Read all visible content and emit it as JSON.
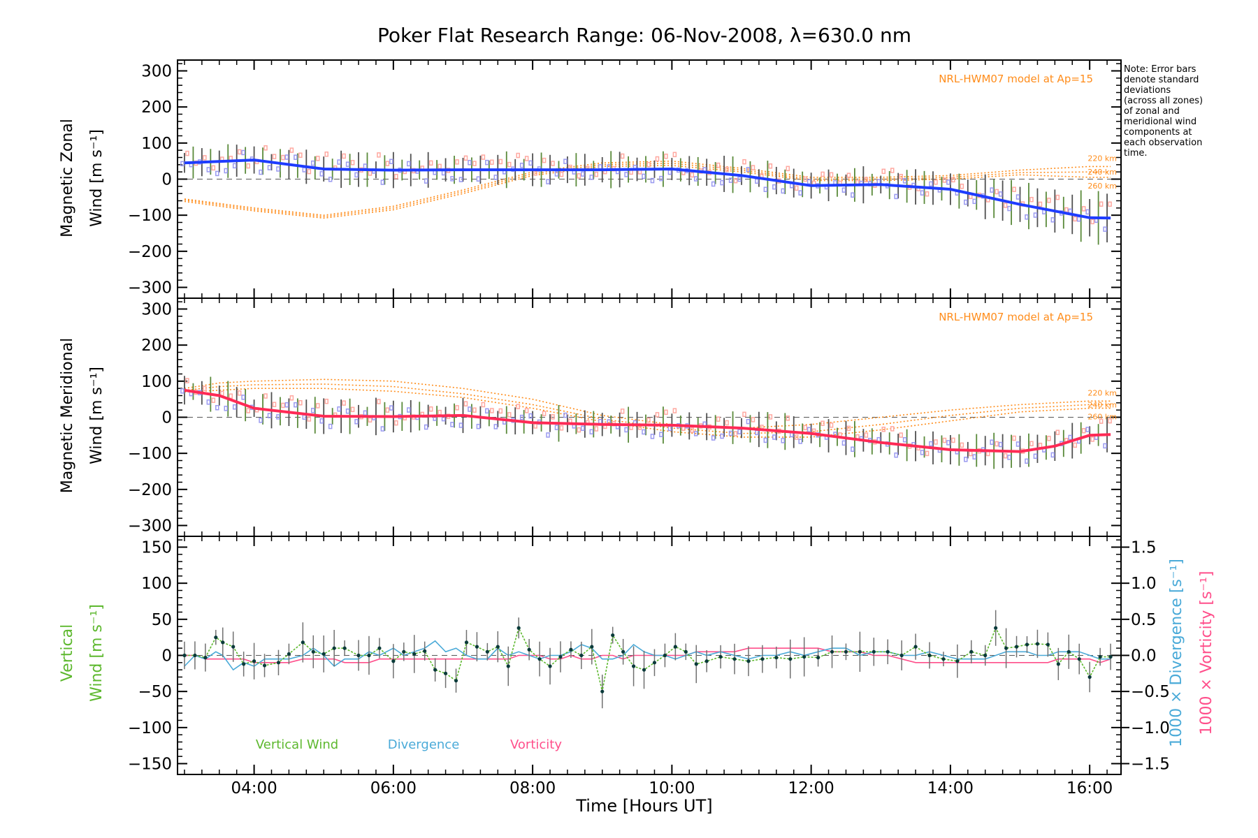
{
  "title": "Poker Flat Research Range: 06-Nov-2008, λ=630.0 nm",
  "note_lines": [
    "Note: Error bars",
    "denote standard",
    "deviations",
    "(across all zones)",
    "of zonal and",
    "meridional wind",
    "components at",
    "each observation",
    "time."
  ],
  "xlabel": "Time [Hours UT]",
  "x_ticks": [
    "04:00",
    "06:00",
    "08:00",
    "10:00",
    "12:00",
    "14:00",
    "16:00"
  ],
  "colors": {
    "zonal_line": "#1e3cff",
    "merid_line": "#ff2a55",
    "model": "#ff8c1a",
    "vertical": "#5db82e",
    "divergence": "#4aaad8",
    "vorticity": "#ff4f8b",
    "zone_blue": "#9a9af0",
    "zone_pink": "#ffa8a0",
    "errbar": "#505050"
  },
  "chart_data": [
    {
      "type": "line",
      "panel": "zonal",
      "ylabel": "Magnetic Zonal",
      "ylabel2": "Wind [m s⁻¹]",
      "ylim": [
        -330,
        330
      ],
      "yticks": [
        "300",
        "200",
        "100",
        "0",
        "−100",
        "−200",
        "−300"
      ],
      "model_label": "NRL-HWM07 model at Ap=15",
      "model_heights": [
        "220 km",
        "240 km",
        "260 km"
      ],
      "x_hours": [
        3.0,
        4.0,
        5.0,
        6.0,
        7.0,
        8.0,
        9.0,
        10.0,
        11.0,
        12.0,
        13.0,
        14.0,
        15.0,
        16.0,
        16.3
      ],
      "wind": [
        45,
        53,
        28,
        25,
        26,
        26,
        26,
        28,
        10,
        -18,
        -15,
        -28,
        -70,
        -107,
        -108
      ],
      "model": [
        {
          "name": "220 km",
          "values": [
            -55,
            -80,
            -100,
            -75,
            -30,
            20,
            45,
            50,
            30,
            5,
            5,
            10,
            25,
            35,
            35
          ]
        },
        {
          "name": "240 km",
          "values": [
            -58,
            -84,
            -104,
            -80,
            -35,
            15,
            40,
            44,
            25,
            0,
            0,
            5,
            18,
            20,
            20
          ]
        },
        {
          "name": "260 km",
          "values": [
            -62,
            -88,
            -108,
            -85,
            -40,
            10,
            35,
            38,
            20,
            -4,
            -4,
            0,
            12,
            5,
            5
          ]
        }
      ]
    },
    {
      "type": "line",
      "panel": "meridional",
      "ylabel": "Magnetic Meridional",
      "ylabel2": "Wind [m s⁻¹]",
      "ylim": [
        -330,
        330
      ],
      "yticks": [
        "300",
        "200",
        "100",
        "0",
        "−100",
        "−200",
        "−300"
      ],
      "model_label": "NRL-HWM07 model at Ap=15",
      "model_heights": [
        "220 km",
        "240 km",
        "260 km"
      ],
      "x_hours": [
        3.0,
        3.5,
        4.0,
        5.0,
        6.0,
        7.0,
        8.0,
        9.0,
        10.0,
        11.0,
        12.0,
        13.0,
        14.0,
        15.0,
        15.5,
        16.0,
        16.3
      ],
      "wind": [
        75,
        60,
        25,
        3,
        2,
        5,
        -15,
        -20,
        -22,
        -30,
        -45,
        -70,
        -90,
        -95,
        -80,
        -50,
        -48
      ],
      "model": [
        {
          "name": "220 km",
          "values": [
            80,
            95,
            100,
            105,
            100,
            80,
            50,
            5,
            -20,
            -30,
            -20,
            0,
            20,
            35,
            40,
            45,
            45
          ]
        },
        {
          "name": "240 km",
          "values": [
            75,
            85,
            90,
            92,
            85,
            65,
            35,
            -5,
            -30,
            -45,
            -40,
            -20,
            5,
            25,
            30,
            35,
            35
          ]
        },
        {
          "name": "260 km",
          "values": [
            70,
            75,
            80,
            80,
            72,
            55,
            25,
            -12,
            -40,
            -55,
            -55,
            -35,
            -10,
            15,
            20,
            25,
            25
          ]
        }
      ]
    },
    {
      "type": "line",
      "panel": "vertical",
      "ylabel": "Vertical",
      "ylabel2": "Wind [m s⁻¹]",
      "ylim": [
        -165,
        165
      ],
      "yticks": [
        "150",
        "100",
        "50",
        "0",
        "−50",
        "−100",
        "−150"
      ],
      "y2lim": [
        -1.65,
        1.65
      ],
      "y2ticks": [
        "1.5",
        "1.0",
        "0.5",
        "0.0",
        "−0.5",
        "−1.0",
        "−1.5"
      ],
      "y2label_div": "1000 × Divergence [s⁻¹]",
      "y2label_vort": "1000 × Vorticity [s⁻¹]",
      "legend": [
        "Vertical Wind",
        "Divergence",
        "Vorticity"
      ],
      "x_hours": [
        3.0,
        3.15,
        3.3,
        3.45,
        3.55,
        3.7,
        3.85,
        4.0,
        4.15,
        4.35,
        4.5,
        4.7,
        4.85,
        5.0,
        5.15,
        5.3,
        5.5,
        5.65,
        5.8,
        6.0,
        6.15,
        6.3,
        6.45,
        6.6,
        6.75,
        6.9,
        7.05,
        7.2,
        7.35,
        7.5,
        7.65,
        7.8,
        7.95,
        8.1,
        8.25,
        8.4,
        8.55,
        8.7,
        8.85,
        9.0,
        9.15,
        9.3,
        9.45,
        9.6,
        9.75,
        9.9,
        10.05,
        10.2,
        10.35,
        10.5,
        10.7,
        10.9,
        11.1,
        11.3,
        11.5,
        11.7,
        11.9,
        12.1,
        12.3,
        12.5,
        12.7,
        12.9,
        13.1,
        13.3,
        13.5,
        13.7,
        13.9,
        14.1,
        14.3,
        14.5,
        14.65,
        14.8,
        14.95,
        15.1,
        15.25,
        15.4,
        15.55,
        15.7,
        15.85,
        16.0,
        16.15,
        16.3
      ],
      "vertical_wind": [
        0,
        0,
        -3,
        25,
        18,
        12,
        -12,
        -8,
        -14,
        -10,
        2,
        18,
        5,
        2,
        10,
        10,
        0,
        0,
        10,
        -8,
        5,
        2,
        6,
        -20,
        -25,
        -35,
        18,
        12,
        5,
        12,
        -15,
        38,
        8,
        -5,
        -15,
        -2,
        8,
        0,
        12,
        -50,
        28,
        5,
        -15,
        -20,
        -10,
        0,
        12,
        5,
        -12,
        -8,
        -2,
        -5,
        -8,
        -5,
        -3,
        -5,
        -2,
        -3,
        5,
        5,
        5,
        5,
        5,
        0,
        12,
        0,
        -5,
        -8,
        5,
        0,
        38,
        10,
        12,
        15,
        16,
        15,
        -12,
        5,
        -5,
        -30,
        -2,
        -2
      ],
      "divergence": [
        -0.15,
        0.0,
        -0.05,
        0.05,
        0.0,
        -0.2,
        -0.1,
        -0.15,
        -0.05,
        -0.05,
        -0.05,
        0.0,
        0.1,
        0.0,
        -0.15,
        -0.05,
        -0.05,
        0.05,
        0.0,
        0.1,
        0.0,
        0.05,
        0.1,
        0.2,
        0.05,
        0.1,
        0.0,
        -0.05,
        -0.05,
        0.1,
        0.0,
        0.05,
        0.0,
        -0.05,
        0.0,
        0.0,
        0.05,
        0.15,
        0.1,
        -0.05,
        -0.05,
        0.0,
        0.15,
        0.05,
        0.0,
        0.0,
        -0.05,
        0.0,
        0.05,
        0.0,
        0.05,
        0.0,
        -0.05,
        0.0,
        0.0,
        0.05,
        0.0,
        0.05,
        0.1,
        0.1,
        0.0,
        0.05,
        0.05,
        0.0,
        0.0,
        0.05,
        0.0,
        -0.05,
        -0.05,
        -0.05,
        0.0,
        0.05,
        0.05,
        0.05,
        0.0,
        0.0,
        0.05,
        0.05,
        0.05,
        0.0,
        -0.05,
        -0.05
      ],
      "vorticity": [
        0.0,
        0.0,
        -0.05,
        -0.05,
        -0.05,
        -0.05,
        -0.05,
        -0.1,
        -0.1,
        -0.1,
        -0.1,
        -0.05,
        -0.05,
        -0.05,
        -0.05,
        -0.1,
        -0.1,
        -0.1,
        -0.05,
        -0.05,
        -0.05,
        -0.05,
        -0.05,
        -0.05,
        -0.05,
        -0.05,
        -0.05,
        -0.05,
        -0.05,
        -0.05,
        -0.05,
        0.0,
        0.0,
        0.0,
        -0.05,
        -0.05,
        0.0,
        -0.05,
        -0.05,
        0.0,
        0.0,
        -0.05,
        0.0,
        0.0,
        0.0,
        0.0,
        0.0,
        0.0,
        0.05,
        0.05,
        0.05,
        0.05,
        0.1,
        0.1,
        0.1,
        0.1,
        0.1,
        0.1,
        0.05,
        0.05,
        0.05,
        0.0,
        0.0,
        -0.05,
        -0.1,
        -0.1,
        -0.1,
        -0.1,
        -0.1,
        -0.1,
        -0.1,
        -0.1,
        -0.1,
        -0.1,
        -0.1,
        -0.1,
        -0.05,
        -0.05,
        -0.05,
        -0.05,
        -0.1,
        -0.05
      ]
    }
  ]
}
